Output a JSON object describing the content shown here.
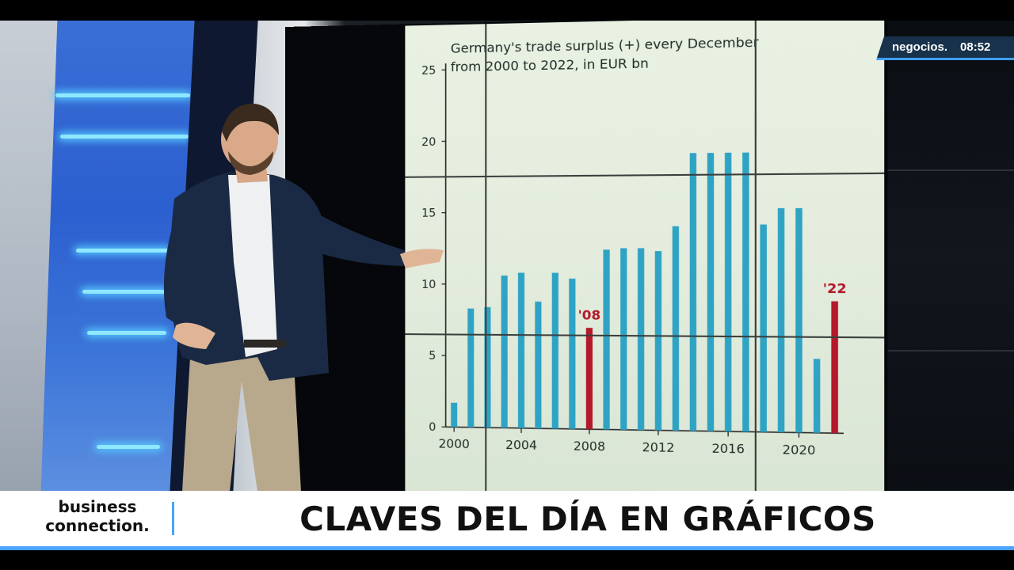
{
  "broadcast": {
    "channel_bug": {
      "brand": "negocios.",
      "time": "08:52"
    },
    "lower_third": {
      "program_name": "business connection.",
      "headline": "CLAVES DEL DÍA EN GRÁFICOS"
    },
    "colors": {
      "accent_blue": "#4aa3ff",
      "bar_blue": "#2fa3c4",
      "bar_red": "#b3192a",
      "lower_third_bg": "#ffffff",
      "bug_bg": "#17324a"
    }
  },
  "chart_data": {
    "type": "bar",
    "title": "Germany's trade surplus (+) every December from 2000 to 2022, in EUR bn",
    "title_lines": [
      "Germany's trade surplus (+) every December",
      "from 2000 to 2022,  in EUR bn"
    ],
    "x": [
      2000,
      2001,
      2002,
      2003,
      2004,
      2005,
      2006,
      2007,
      2008,
      2009,
      2010,
      2011,
      2012,
      2013,
      2014,
      2015,
      2016,
      2017,
      2018,
      2019,
      2020,
      2021,
      2022
    ],
    "values": [
      1.7,
      8.3,
      8.4,
      10.6,
      10.8,
      8.8,
      10.8,
      10.4,
      7.0,
      12.4,
      12.5,
      12.5,
      12.3,
      14.0,
      19.0,
      19.0,
      19.0,
      19.0,
      14.1,
      15.2,
      15.2,
      5.0,
      8.9
    ],
    "highlighted": [
      {
        "x": 2008,
        "label": "'08"
      },
      {
        "x": 2022,
        "label": "'22"
      }
    ],
    "x_tick_labels": [
      "2000",
      "2004",
      "2008",
      "2012",
      "2016",
      "2020"
    ],
    "y_tick_labels": [
      "0",
      "5",
      "10",
      "15",
      "20",
      "25"
    ],
    "ylim": [
      0,
      25
    ],
    "xlabel": "",
    "ylabel": "",
    "grid": true
  }
}
